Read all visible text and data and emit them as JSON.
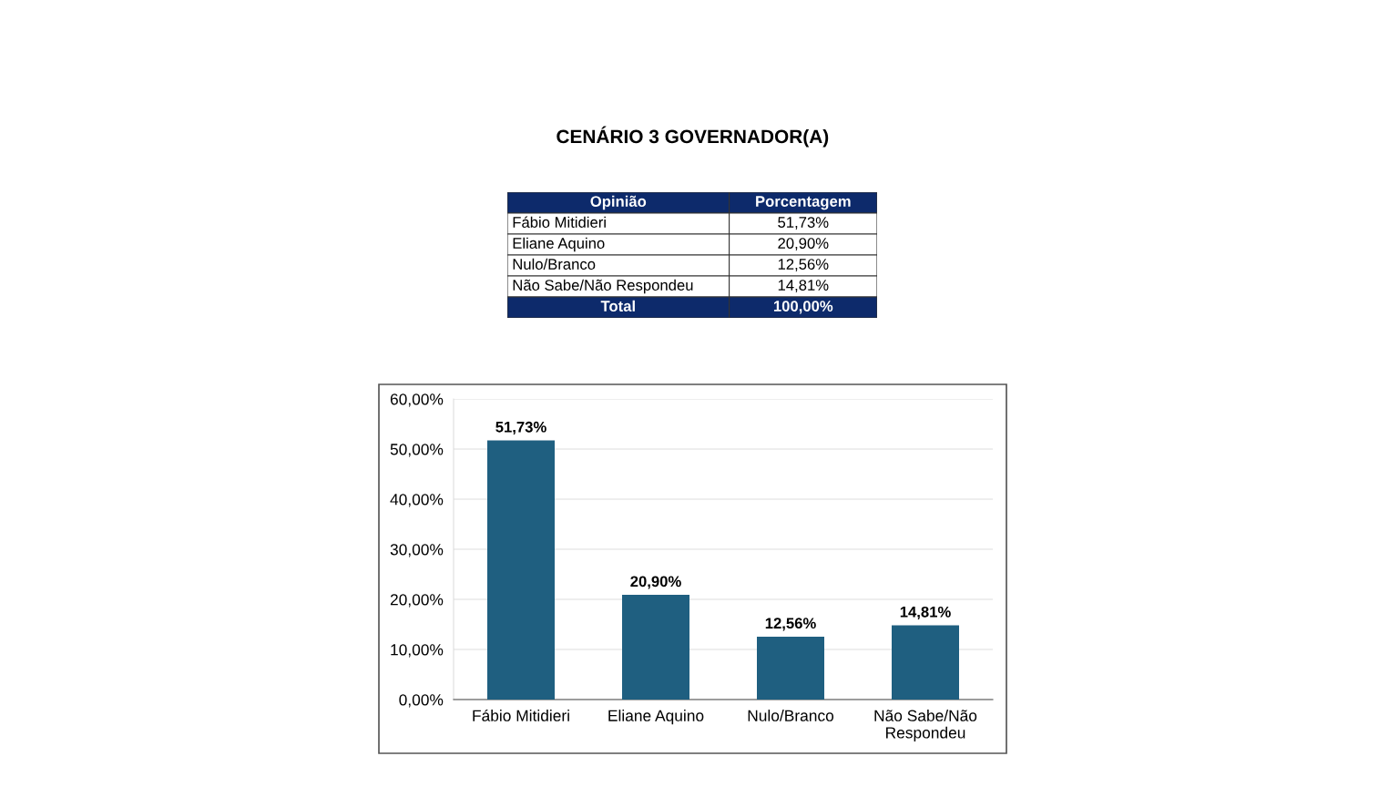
{
  "chart_data": {
    "type": "bar",
    "title": "CENÁRIO 3 GOVERNADOR(A)",
    "categories": [
      "Fábio Mitidieri",
      "Eliane Aquino",
      "Nulo/Branco",
      "Não Sabe/Não Respondeu"
    ],
    "values": [
      51.73,
      20.9,
      12.56,
      14.81
    ],
    "value_labels": [
      "51,73%",
      "20,90%",
      "12,56%",
      "14,81%"
    ],
    "color": "#1f5f80",
    "ylim": [
      0,
      60
    ],
    "yticks": [
      {
        "value": 0,
        "label": "0,00%"
      },
      {
        "value": 10,
        "label": "10,00%"
      },
      {
        "value": 20,
        "label": "20,00%"
      },
      {
        "value": 30,
        "label": "30,00%"
      },
      {
        "value": 40,
        "label": "40,00%"
      },
      {
        "value": 50,
        "label": "50,00%"
      },
      {
        "value": 60,
        "label": "60,00%"
      }
    ],
    "grid": "y",
    "annotations": [
      "Opinião",
      "Porcentagem",
      "Total",
      "100,00%"
    ]
  }
}
